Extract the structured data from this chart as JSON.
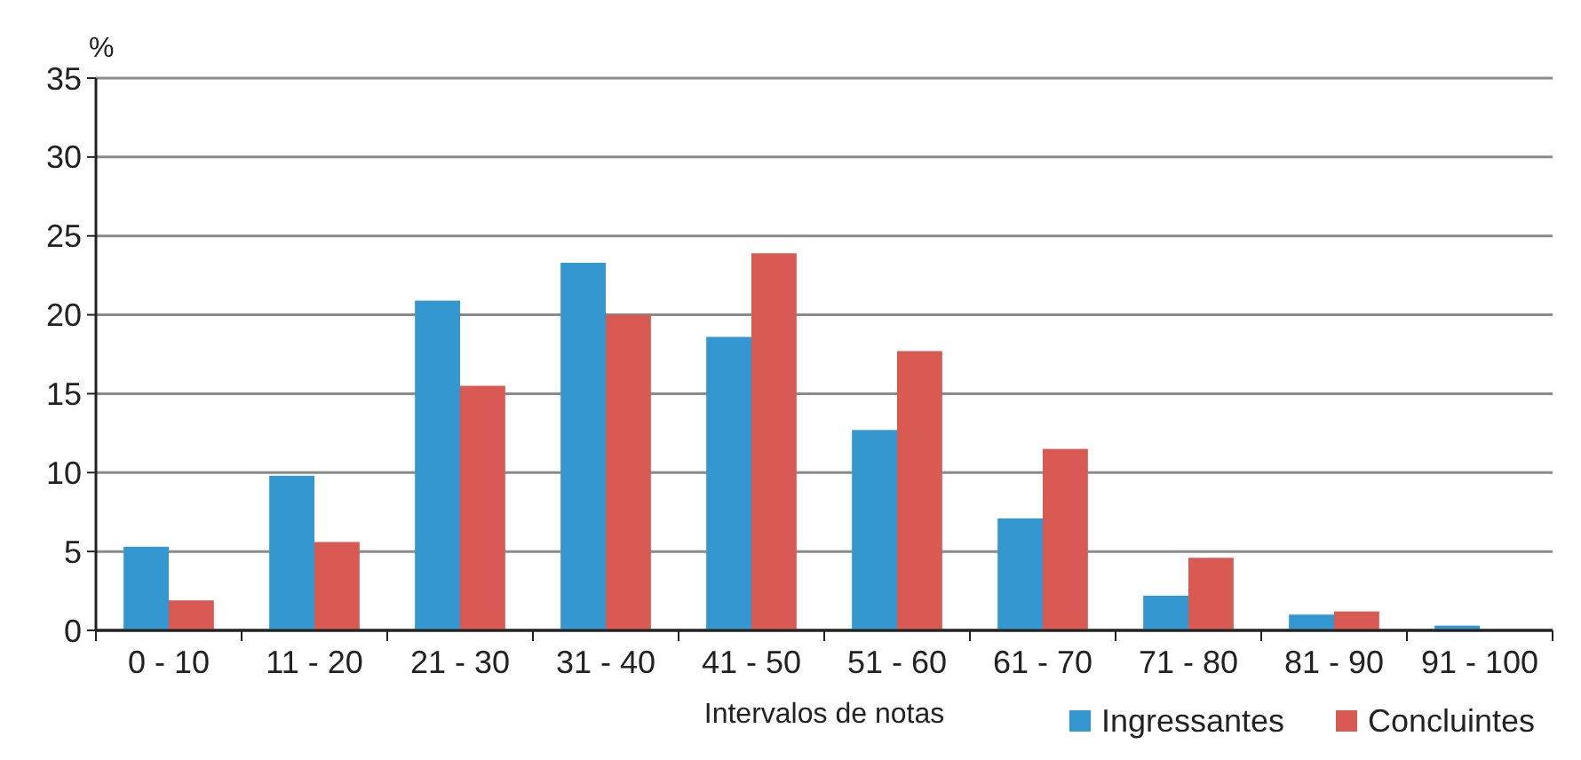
{
  "chart_data": {
    "type": "bar",
    "ylabel": "%",
    "xlabel": "Intervalos de notas",
    "categories": [
      "0 - 10",
      "11 - 20",
      "21 - 30",
      "31 - 40",
      "41 - 50",
      "51 - 60",
      "61 - 70",
      "71 - 80",
      "81 - 90",
      "91 - 100"
    ],
    "series": [
      {
        "name": "Ingressantes",
        "color": "#3597cf",
        "values": [
          5.3,
          9.8,
          20.9,
          23.3,
          18.6,
          12.7,
          7.1,
          2.2,
          1.0,
          0.3
        ]
      },
      {
        "name": "Concluintes",
        "color": "#d95953",
        "values": [
          1.9,
          5.6,
          15.5,
          20.0,
          23.9,
          17.7,
          11.5,
          4.6,
          1.2,
          0
        ]
      }
    ],
    "ylim": [
      0,
      35
    ],
    "yticks": [
      0,
      5,
      10,
      15,
      20,
      25,
      30,
      35
    ],
    "grid": "y",
    "legend": "bottom right"
  }
}
